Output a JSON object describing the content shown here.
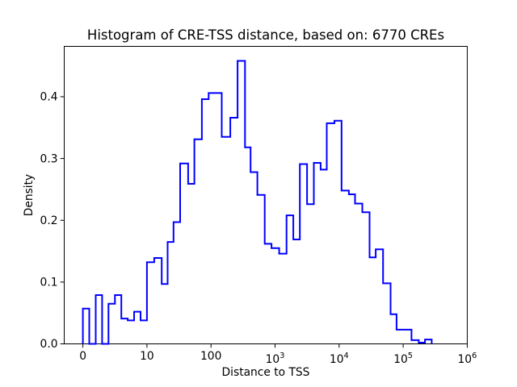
{
  "figure": {
    "title": "Histogram of CRE-TSS distance, based on: 6770 CREs"
  },
  "chart_data": {
    "type": "bar",
    "subtype": "histogram-step",
    "title": "Histogram of CRE-TSS distance, based on: 6770 CREs",
    "xlabel": "Distance to TSS",
    "ylabel": "Density",
    "x_scale": "symlog",
    "x_linthresh": 10,
    "grid": false,
    "legend": null,
    "line_color": "#0000ff",
    "axes_color": "#000000",
    "background": "#ffffff",
    "ylim": [
      0,
      0.4815
    ],
    "xlim_ticks": [
      0,
      1000000
    ],
    "y_ticks": [
      {
        "text": "0.0",
        "value": 0.0
      },
      {
        "text": "0.1",
        "value": 0.1
      },
      {
        "text": "0.2",
        "value": 0.2
      },
      {
        "text": "0.3",
        "value": 0.3
      },
      {
        "text": "0.4",
        "value": 0.4
      }
    ],
    "x_ticks": [
      {
        "text": "0",
        "value": 0,
        "exp": null
      },
      {
        "text": "10",
        "value": 10,
        "exp": null
      },
      {
        "text": "100",
        "value": 100,
        "exp": null
      },
      {
        "text": "10",
        "value": 1000,
        "exp": "3"
      },
      {
        "text": "10",
        "value": 10000,
        "exp": "4"
      },
      {
        "text": "10",
        "value": 100000,
        "exp": "5"
      },
      {
        "text": "10",
        "value": 1000000,
        "exp": "6"
      }
    ],
    "bin_edges": [
      0,
      1,
      2,
      3,
      4,
      5,
      6,
      7,
      8,
      9,
      10,
      13,
      17,
      21,
      26,
      33,
      44,
      55,
      72,
      92,
      147,
      200,
      260,
      340,
      415,
      530,
      690,
      880,
      1160,
      1510,
      1930,
      2440,
      3160,
      4030,
      5140,
      6410,
      8450,
      10900,
      14200,
      17700,
      23000,
      29900,
      37300,
      48500,
      63500,
      78700,
      135000,
      175000,
      219000,
      279000
    ],
    "densities": [
      0.057,
      0,
      0.079,
      0,
      0.065,
      0.079,
      0.041,
      0.038,
      0.052,
      0.038,
      0.132,
      0.139,
      0.097,
      0.165,
      0.197,
      0.292,
      0.259,
      0.331,
      0.396,
      0.406,
      0.335,
      0.366,
      0.458,
      0.318,
      0.278,
      0.241,
      0.162,
      0.155,
      0.146,
      0.208,
      0.169,
      0.291,
      0.226,
      0.293,
      0.282,
      0.357,
      0.361,
      0.248,
      0.242,
      0.227,
      0.213,
      0.14,
      0.153,
      0.098,
      0.048,
      0.023,
      0.006,
      0.002,
      0.007
    ]
  }
}
